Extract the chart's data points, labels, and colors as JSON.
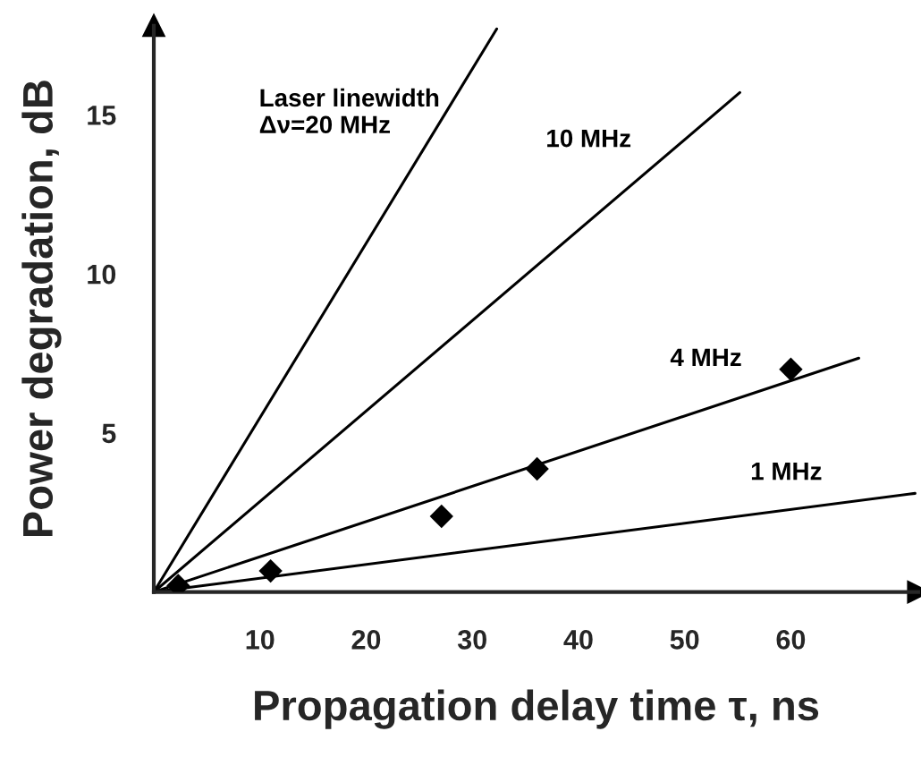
{
  "chart_data": {
    "type": "line",
    "xlabel": "Propagation delay time τ, ns",
    "ylabel": "Power degradation, dB",
    "xlim": [
      0,
      72
    ],
    "ylim": [
      0,
      17.8
    ],
    "xticks": [
      10,
      20,
      30,
      40,
      50,
      60
    ],
    "yticks": [
      5,
      10,
      15
    ],
    "grid": false,
    "legend": false,
    "marker": "none",
    "line_style": "solid",
    "series": [
      {
        "name": "Laser linewidth\nΔν=20 MHz",
        "color": "#000000",
        "x": [
          0,
          32.3
        ],
        "values": [
          0,
          17.7
        ]
      },
      {
        "name": "10 MHz",
        "color": "#000000",
        "x": [
          0,
          55.2
        ],
        "values": [
          0,
          15.7
        ]
      },
      {
        "name": "4 MHz",
        "color": "#000000",
        "x": [
          0,
          66.4
        ],
        "values": [
          0,
          7.35
        ]
      },
      {
        "name": "1 MHz",
        "color": "#000000",
        "x": [
          0,
          71.7
        ],
        "values": [
          0,
          3.1
        ]
      },
      {
        "type": "scatter",
        "color": "#000000",
        "x": [
          2.3,
          11,
          27.1,
          36.1,
          60
        ],
        "values": [
          0.2,
          0.66,
          2.38,
          3.87,
          7.0
        ],
        "marker": "diamond"
      }
    ]
  }
}
